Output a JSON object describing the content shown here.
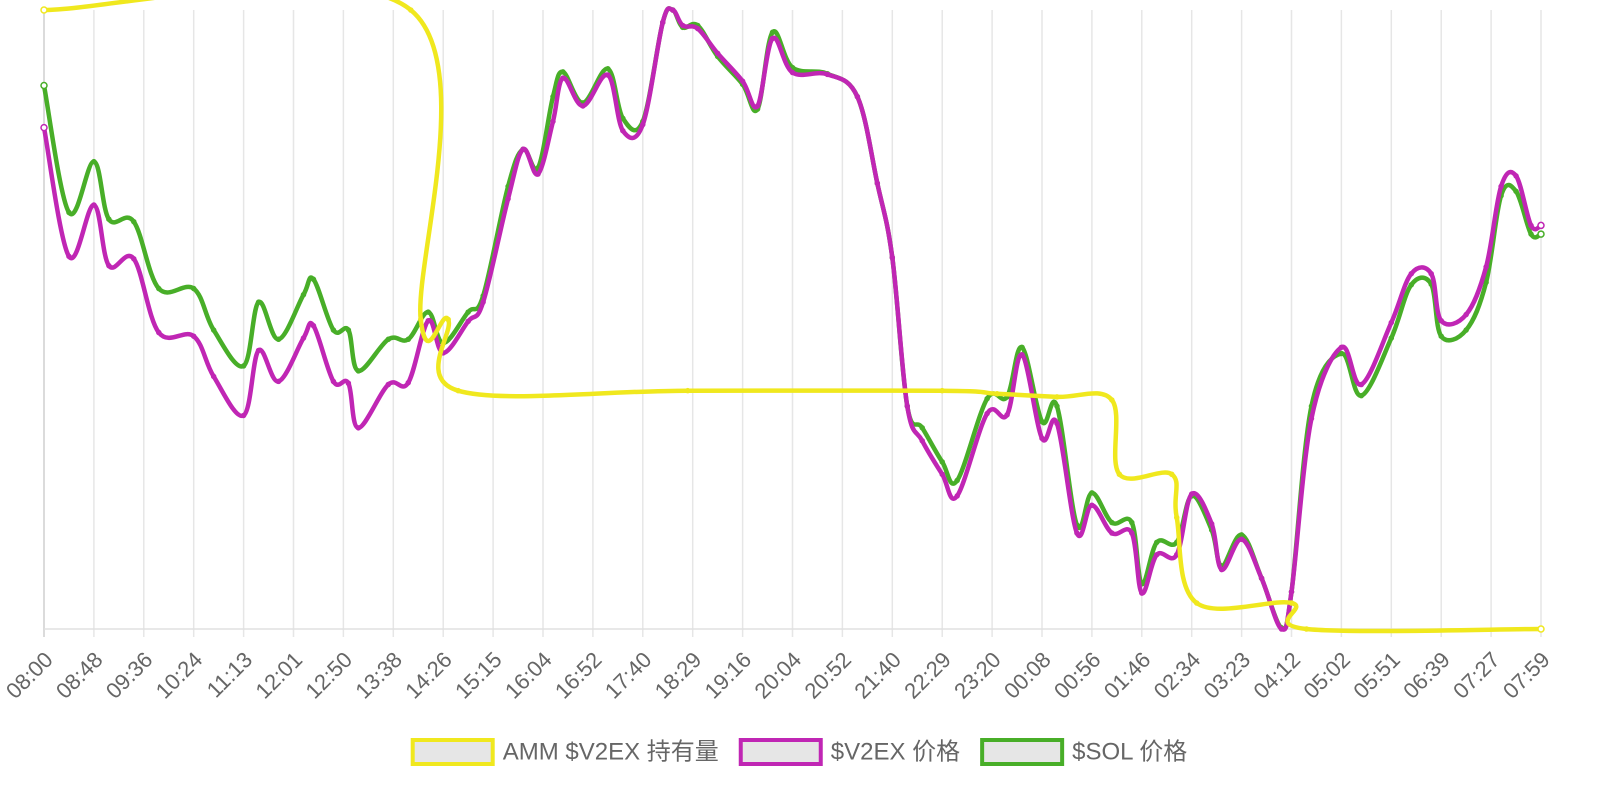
{
  "chart_data": {
    "type": "line",
    "title": "",
    "xlabel": "",
    "ylabel": "",
    "grid": "vertical",
    "legend_position": "bottom",
    "y_axis_labels_visible": false,
    "x_tick_labels": [
      "08:00",
      "08:48",
      "09:36",
      "10:24",
      "11:13",
      "12:01",
      "12:50",
      "13:38",
      "14:26",
      "15:15",
      "16:04",
      "16:52",
      "17:40",
      "18:29",
      "19:16",
      "20:04",
      "20:52",
      "21:40",
      "22:29",
      "23:20",
      "00:08",
      "00:56",
      "01:46",
      "02:34",
      "03:23",
      "04:12",
      "05:02",
      "05:51",
      "06:39",
      "07:27",
      "07:59"
    ],
    "ylim": [
      0,
      100
    ],
    "series": [
      {
        "name": "AMM $V2EX 持有量",
        "color": "#f0e81e",
        "points": [
          [
            0,
            100
          ],
          [
            7.35,
            100
          ],
          [
            7.55,
            50
          ],
          [
            8.1,
            50
          ],
          [
            8.3,
            38.5
          ],
          [
            12.9,
            38.5
          ],
          [
            18.0,
            38.5
          ],
          [
            19.1,
            38
          ],
          [
            20.3,
            37.5
          ],
          [
            21.4,
            37
          ],
          [
            21.55,
            25
          ],
          [
            22.6,
            25
          ],
          [
            22.7,
            18
          ],
          [
            23.1,
            4.2
          ],
          [
            25.0,
            4.2
          ],
          [
            25.3,
            0
          ],
          [
            30.0,
            0
          ]
        ]
      },
      {
        "name": "$V2EX 价格",
        "color": "#c026b4",
        "points": [
          [
            0,
            81
          ],
          [
            0.5,
            60.2
          ],
          [
            1.0,
            68.5
          ],
          [
            1.3,
            58.7
          ],
          [
            1.8,
            59.8
          ],
          [
            2.3,
            47.9
          ],
          [
            3.0,
            47.3
          ],
          [
            3.4,
            40.8
          ],
          [
            4.0,
            34.5
          ],
          [
            4.3,
            45
          ],
          [
            4.7,
            40
          ],
          [
            5.2,
            47
          ],
          [
            5.4,
            49
          ],
          [
            5.8,
            40
          ],
          [
            6.1,
            39.7
          ],
          [
            6.3,
            32.5
          ],
          [
            6.9,
            39.5
          ],
          [
            7.3,
            39.8
          ],
          [
            7.7,
            49.8
          ],
          [
            8.0,
            44.6
          ],
          [
            8.5,
            49.7
          ],
          [
            8.8,
            52.8
          ],
          [
            9.3,
            69.5
          ],
          [
            9.6,
            77.5
          ],
          [
            9.9,
            73.5
          ],
          [
            10.2,
            82
          ],
          [
            10.4,
            89
          ],
          [
            10.8,
            84.5
          ],
          [
            11.3,
            89.5
          ],
          [
            11.6,
            80.5
          ],
          [
            12.0,
            81.5
          ],
          [
            12.4,
            98
          ],
          [
            12.6,
            100
          ],
          [
            12.8,
            97.5
          ],
          [
            13.1,
            97
          ],
          [
            13.5,
            93
          ],
          [
            14.0,
            88.5
          ],
          [
            14.3,
            84.5
          ],
          [
            14.6,
            95.4
          ],
          [
            15.0,
            89.9
          ],
          [
            15.7,
            89.6
          ],
          [
            16.3,
            86
          ],
          [
            16.7,
            72
          ],
          [
            17.0,
            60
          ],
          [
            17.3,
            36
          ],
          [
            17.6,
            30.4
          ],
          [
            18.0,
            25
          ],
          [
            18.3,
            21.5
          ],
          [
            18.9,
            34.8
          ],
          [
            19.3,
            34.6
          ],
          [
            19.6,
            44.3
          ],
          [
            20.0,
            30.8
          ],
          [
            20.3,
            33.2
          ],
          [
            20.7,
            15.5
          ],
          [
            21.0,
            20
          ],
          [
            21.4,
            15.5
          ],
          [
            21.8,
            15.5
          ],
          [
            22.0,
            5.8
          ],
          [
            22.3,
            12
          ],
          [
            22.7,
            12
          ],
          [
            23.0,
            21.8
          ],
          [
            23.4,
            17
          ],
          [
            23.6,
            9.6
          ],
          [
            24.0,
            14.5
          ],
          [
            24.4,
            8.2
          ],
          [
            24.8,
            0
          ],
          [
            25.0,
            6
          ],
          [
            25.4,
            34
          ],
          [
            26.0,
            45.5
          ],
          [
            26.4,
            39.5
          ],
          [
            27.0,
            49.5
          ],
          [
            27.4,
            57.4
          ],
          [
            27.8,
            57.4
          ],
          [
            28.0,
            49.8
          ],
          [
            28.5,
            50.8
          ],
          [
            28.9,
            58.5
          ],
          [
            29.2,
            71.5
          ],
          [
            29.5,
            73.2
          ],
          [
            29.8,
            65.2
          ],
          [
            30.0,
            65.2
          ]
        ]
      },
      {
        "name": "$SOL 价格",
        "color": "#48ae28",
        "points": [
          [
            0,
            87.8
          ],
          [
            0.5,
            67.3
          ],
          [
            1.0,
            75.5
          ],
          [
            1.3,
            66.2
          ],
          [
            1.8,
            65.8
          ],
          [
            2.3,
            55
          ],
          [
            3.0,
            55
          ],
          [
            3.4,
            48.3
          ],
          [
            4.0,
            42.5
          ],
          [
            4.3,
            52.8
          ],
          [
            4.7,
            46.8
          ],
          [
            5.2,
            54
          ],
          [
            5.4,
            56.5
          ],
          [
            5.8,
            48.3
          ],
          [
            6.1,
            48.3
          ],
          [
            6.3,
            41.7
          ],
          [
            6.9,
            46.8
          ],
          [
            7.3,
            46.8
          ],
          [
            7.7,
            51.2
          ],
          [
            8.0,
            46.2
          ],
          [
            8.5,
            51.2
          ],
          [
            8.8,
            53.8
          ],
          [
            9.3,
            71.5
          ],
          [
            9.6,
            77.5
          ],
          [
            9.9,
            74.5
          ],
          [
            10.2,
            86
          ],
          [
            10.4,
            90
          ],
          [
            10.8,
            85
          ],
          [
            11.3,
            90.5
          ],
          [
            11.6,
            82.5
          ],
          [
            12.0,
            82
          ],
          [
            12.4,
            98
          ],
          [
            12.6,
            100
          ],
          [
            12.8,
            97.2
          ],
          [
            13.1,
            97.5
          ],
          [
            13.5,
            92.5
          ],
          [
            14.0,
            88
          ],
          [
            14.3,
            84
          ],
          [
            14.6,
            96.4
          ],
          [
            15.0,
            90.7
          ],
          [
            15.7,
            89.7
          ],
          [
            16.3,
            86
          ],
          [
            16.7,
            72
          ],
          [
            17.0,
            60
          ],
          [
            17.3,
            36
          ],
          [
            17.6,
            32.5
          ],
          [
            18.0,
            27
          ],
          [
            18.3,
            24
          ],
          [
            18.9,
            37.2
          ],
          [
            19.3,
            37.5
          ],
          [
            19.6,
            45.5
          ],
          [
            20.0,
            33.5
          ],
          [
            20.3,
            36
          ],
          [
            20.7,
            16.8
          ],
          [
            21.0,
            22
          ],
          [
            21.4,
            17.2
          ],
          [
            21.8,
            17.2
          ],
          [
            22.0,
            7.3
          ],
          [
            22.3,
            14
          ],
          [
            22.7,
            14
          ],
          [
            23.0,
            21.5
          ],
          [
            23.4,
            16
          ],
          [
            23.6,
            10.2
          ],
          [
            24.0,
            15.2
          ],
          [
            24.4,
            8.2
          ],
          [
            24.8,
            0.2
          ],
          [
            25.0,
            6
          ],
          [
            25.4,
            36
          ],
          [
            26.0,
            44.5
          ],
          [
            26.4,
            37.7
          ],
          [
            27.0,
            47
          ],
          [
            27.4,
            55.6
          ],
          [
            27.8,
            55.7
          ],
          [
            28.0,
            47.3
          ],
          [
            28.5,
            48.3
          ],
          [
            28.9,
            56
          ],
          [
            29.2,
            70
          ],
          [
            29.5,
            70.7
          ],
          [
            29.8,
            63.8
          ],
          [
            30.0,
            63.8
          ]
        ]
      }
    ]
  }
}
